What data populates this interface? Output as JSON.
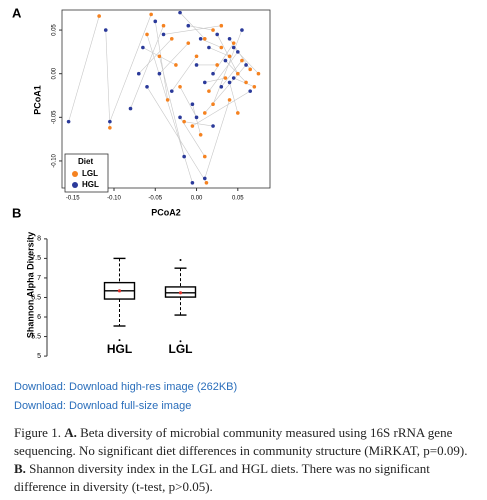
{
  "chart_data": [
    {
      "type": "scatter",
      "panel": "A",
      "x_label": "PCoA2",
      "y_label": "PCoA1",
      "xlim": [
        -0.163,
        0.089
      ],
      "ylim": [
        -0.131,
        0.073
      ],
      "xticks": [
        -0.15,
        {
          "value": -0.1,
          "label": "-0.10"
        },
        -0.05,
        {
          "value": 0,
          "label": "0.00"
        },
        0.05
      ],
      "yticks": [
        {
          "value": -0.1,
          "label": "-0.10"
        },
        -0.05,
        {
          "value": 0,
          "label": "0.00"
        },
        0.05
      ],
      "legend_title": "Diet",
      "legend": "bottom-left",
      "series": [
        {
          "name": "LGL",
          "color": "#f58220",
          "x": [
            -0.118,
            -0.105,
            -0.055,
            -0.04,
            -0.03,
            -0.025,
            -0.035,
            -0.01,
            0.0,
            0.01,
            0.02,
            0.025,
            0.03,
            0.035,
            0.04,
            0.045,
            0.05,
            0.055,
            0.06,
            0.065,
            0.07,
            0.015,
            0.02,
            0.01,
            -0.005,
            0.005,
            0.01,
            -0.02,
            -0.045,
            -0.06,
            0.04,
            0.05,
            0.03,
            -0.015,
            0.075,
            0.012
          ],
          "values": [
            0.066,
            -0.062,
            0.068,
            0.055,
            0.04,
            0.01,
            -0.03,
            0.035,
            0.02,
            0.04,
            0.05,
            0.01,
            0.03,
            -0.005,
            0.02,
            0.035,
            0.0,
            0.015,
            -0.01,
            0.005,
            -0.015,
            -0.02,
            -0.035,
            -0.045,
            -0.06,
            -0.07,
            -0.095,
            -0.015,
            0.02,
            0.045,
            -0.03,
            -0.045,
            0.055,
            -0.055,
            0.0,
            -0.125
          ]
        },
        {
          "name": "HGL",
          "color": "#2b3a9a",
          "x": [
            -0.155,
            -0.11,
            -0.105,
            -0.08,
            -0.07,
            -0.065,
            -0.05,
            -0.045,
            -0.03,
            -0.02,
            -0.01,
            0.0,
            0.005,
            0.01,
            0.015,
            0.02,
            0.025,
            0.03,
            0.035,
            0.04,
            0.045,
            0.05,
            0.055,
            0.06,
            0.065,
            -0.005,
            -0.02,
            0.0,
            -0.015,
            -0.005,
            0.01,
            0.04,
            -0.04,
            0.02,
            0.045,
            -0.06
          ],
          "values": [
            -0.055,
            0.05,
            -0.055,
            -0.04,
            0.0,
            0.03,
            0.06,
            0.0,
            -0.02,
            0.07,
            0.055,
            0.01,
            0.04,
            -0.01,
            0.03,
            0.0,
            0.045,
            -0.015,
            0.015,
            0.04,
            -0.005,
            0.025,
            0.05,
            0.01,
            -0.02,
            -0.035,
            -0.05,
            -0.05,
            -0.095,
            -0.125,
            -0.12,
            -0.01,
            0.045,
            -0.06,
            0.03,
            -0.015
          ]
        }
      ]
    },
    {
      "type": "box",
      "panel": "B",
      "y_label": "Shannon Alpha Diversity",
      "categories": [
        "HGL",
        "LGL"
      ],
      "ylim": [
        4.9,
        8.15
      ],
      "yticks": [
        5,
        5.5,
        6,
        6.5,
        7,
        7.5,
        8
      ],
      "median_color": "#e0302a",
      "boxes": [
        {
          "min": 5.77,
          "q1": 6.46,
          "median": 6.67,
          "q3": 6.88,
          "max": 7.5,
          "outliers": [
            5.41
          ]
        },
        {
          "min": 6.05,
          "q1": 6.51,
          "median": 6.62,
          "q3": 6.77,
          "max": 7.25,
          "outliers": [
            7.46,
            5.38
          ]
        }
      ]
    }
  ],
  "links": [
    "Download: Download high-res image (262KB)",
    "Download: Download full-size image"
  ],
  "caption": {
    "label": "Figure 1.",
    "parts": [
      {
        "bold": "A.",
        "text": "Beta diversity of microbial community measured using 16S rRNA gene sequencing. No significant diet differences in community structure (MiRKAT, p=0.09)."
      },
      {
        "bold": "B.",
        "text": "Shannon diversity index in the LGL and HGL diets. There was no significant difference in diversity (t-test, p>0.05)."
      }
    ]
  }
}
